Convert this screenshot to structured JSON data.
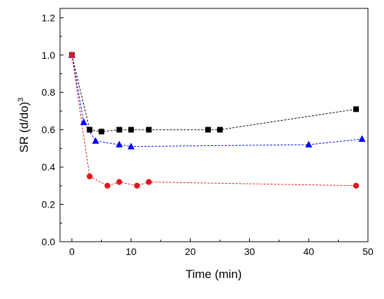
{
  "chart_data": {
    "type": "scatter",
    "title": "",
    "xlabel": "Time (min)",
    "ylabel_main": "SR (d/do)",
    "ylabel_sup": "3",
    "xlim": [
      -2,
      50
    ],
    "ylim": [
      0.0,
      1.25
    ],
    "xticks": [
      "0",
      "10",
      "20",
      "30",
      "40",
      "50"
    ],
    "xtick_values": [
      0,
      10,
      20,
      30,
      40,
      50
    ],
    "yticks": [
      "0.0",
      "0.2",
      "0.4",
      "0.6",
      "0.8",
      "1.0",
      "1.2"
    ],
    "ytick_values": [
      0.0,
      0.2,
      0.4,
      0.6,
      0.8,
      1.0,
      1.2
    ],
    "grid": false,
    "legend": "none",
    "series": [
      {
        "marker": "square",
        "color": "#000000",
        "x": [
          0,
          3,
          5,
          8,
          10,
          13,
          23,
          25,
          48
        ],
        "y": [
          1.0,
          0.6,
          0.59,
          0.6,
          0.6,
          0.6,
          0.6,
          0.6,
          0.71
        ]
      },
      {
        "marker": "triangle",
        "color": "#0000ff",
        "x": [
          0,
          2,
          4,
          8,
          10,
          40,
          49
        ],
        "y": [
          1.0,
          0.64,
          0.54,
          0.52,
          0.51,
          0.52,
          0.55
        ]
      },
      {
        "marker": "circle",
        "color": "#e0191b",
        "x": [
          0,
          3,
          6,
          8,
          11,
          13,
          48
        ],
        "y": [
          1.0,
          0.35,
          0.3,
          0.32,
          0.3,
          0.32,
          0.3
        ]
      }
    ]
  }
}
